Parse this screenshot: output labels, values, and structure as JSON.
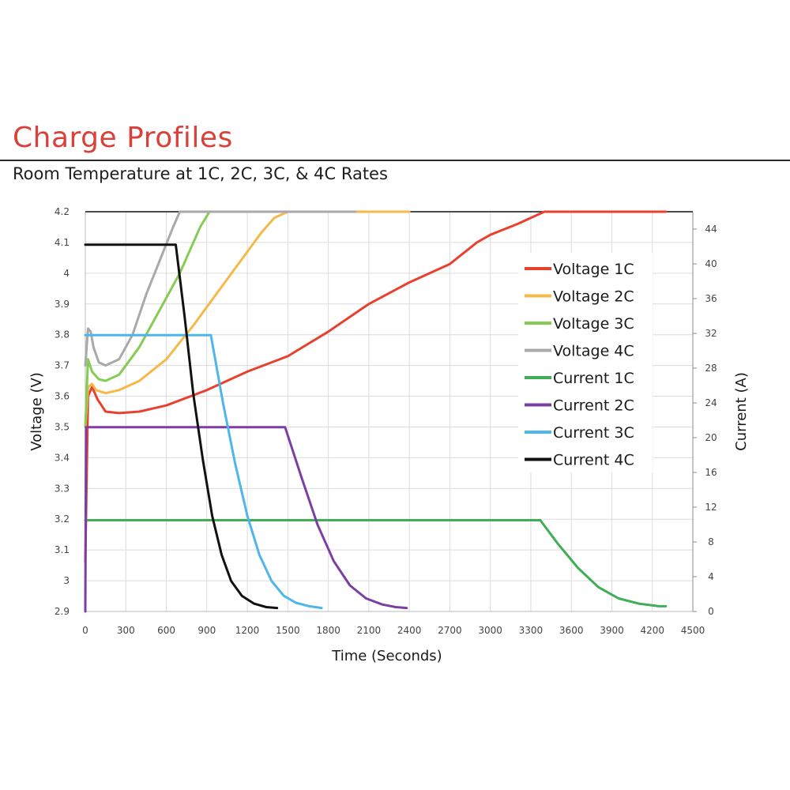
{
  "header": {
    "title": "Charge Profiles",
    "subtitle": "Room Temperature at 1C, 2C, 3C, & 4C Rates"
  },
  "chart_data": {
    "type": "line",
    "xlabel": "Time (Seconds)",
    "ylabel": "Voltage (V)",
    "y2label": "Current (A)",
    "xlim": [
      0,
      4500
    ],
    "ylim": [
      2.9,
      4.2
    ],
    "y2lim": [
      0,
      46
    ],
    "x_ticks": [
      0,
      300,
      600,
      900,
      1200,
      1500,
      1800,
      2100,
      2400,
      2700,
      3000,
      3300,
      3600,
      3900,
      4200,
      4500
    ],
    "y_ticks": [
      "2.9",
      "3",
      "3.1",
      "3.2",
      "3.3",
      "3.4",
      "3.5",
      "3.6",
      "3.7",
      "3.8",
      "3.9",
      "4",
      "4.1",
      "4.2"
    ],
    "y2_ticks": [
      0,
      4,
      8,
      12,
      16,
      20,
      24,
      28,
      32,
      36,
      40,
      44
    ],
    "grid": true,
    "legend_position": "right",
    "series": [
      {
        "name": "Voltage 1C",
        "axis": "left",
        "color": "#e8412f",
        "x": [
          0,
          20,
          50,
          90,
          150,
          250,
          400,
          600,
          900,
          1200,
          1500,
          1800,
          2100,
          2400,
          2700,
          2900,
          3000,
          3200,
          3400,
          4300
        ],
        "y": [
          3.06,
          3.6,
          3.63,
          3.59,
          3.55,
          3.545,
          3.55,
          3.57,
          3.62,
          3.68,
          3.73,
          3.81,
          3.9,
          3.97,
          4.03,
          4.1,
          4.125,
          4.16,
          4.2,
          4.2
        ]
      },
      {
        "name": "Voltage 2C",
        "axis": "left",
        "color": "#f5b94a",
        "x": [
          0,
          20,
          50,
          80,
          150,
          250,
          400,
          600,
          800,
          1000,
          1200,
          1300,
          1400,
          1500,
          2400
        ],
        "y": [
          3.5,
          3.63,
          3.64,
          3.62,
          3.61,
          3.62,
          3.65,
          3.72,
          3.83,
          3.95,
          4.07,
          4.13,
          4.18,
          4.2,
          4.2
        ]
      },
      {
        "name": "Voltage 3C",
        "axis": "left",
        "color": "#86cc54",
        "x": [
          0,
          20,
          50,
          100,
          150,
          250,
          400,
          550,
          700,
          850,
          920,
          2000
        ],
        "y": [
          3.5,
          3.72,
          3.68,
          3.655,
          3.65,
          3.67,
          3.76,
          3.88,
          4.0,
          4.15,
          4.2,
          4.2
        ]
      },
      {
        "name": "Voltage 4C",
        "axis": "left",
        "color": "#a9a9a9",
        "x": [
          0,
          20,
          40,
          60,
          100,
          150,
          250,
          350,
          450,
          550,
          650,
          700,
          2000
        ],
        "y": [
          3.7,
          3.82,
          3.81,
          3.76,
          3.71,
          3.7,
          3.72,
          3.8,
          3.93,
          4.04,
          4.15,
          4.2,
          4.2
        ]
      },
      {
        "name": "Current 1C",
        "axis": "right",
        "color": "#3fae56",
        "x": [
          0,
          10,
          3370,
          3500,
          3650,
          3800,
          3950,
          4100,
          4250,
          4300
        ],
        "y": [
          10.5,
          10.5,
          10.5,
          7.8,
          5.0,
          2.8,
          1.5,
          0.9,
          0.6,
          0.6
        ]
      },
      {
        "name": "Current 2C",
        "axis": "right",
        "color": "#7b3fa4",
        "x": [
          0,
          5,
          10,
          1480,
          1600,
          1720,
          1840,
          1960,
          2080,
          2200,
          2300,
          2380
        ],
        "y": [
          0,
          21.2,
          21.2,
          21.2,
          15.5,
          10.0,
          5.8,
          3.0,
          1.5,
          0.8,
          0.5,
          0.4
        ]
      },
      {
        "name": "Current 3C",
        "axis": "right",
        "color": "#4db6ec",
        "x": [
          0,
          10,
          930,
          1020,
          1110,
          1200,
          1290,
          1380,
          1470,
          1560,
          1660,
          1750
        ],
        "y": [
          31.8,
          31.8,
          31.8,
          24.0,
          17.0,
          11.0,
          6.5,
          3.5,
          1.8,
          1.0,
          0.6,
          0.4
        ]
      },
      {
        "name": "Current 4C",
        "axis": "right",
        "color": "#111111",
        "x": [
          0,
          10,
          670,
          735,
          800,
          870,
          940,
          1010,
          1080,
          1160,
          1250,
          1340,
          1420
        ],
        "y": [
          42.2,
          42.2,
          42.2,
          34.0,
          25.0,
          17.5,
          11.0,
          6.5,
          3.5,
          1.8,
          0.9,
          0.5,
          0.4
        ]
      }
    ]
  }
}
